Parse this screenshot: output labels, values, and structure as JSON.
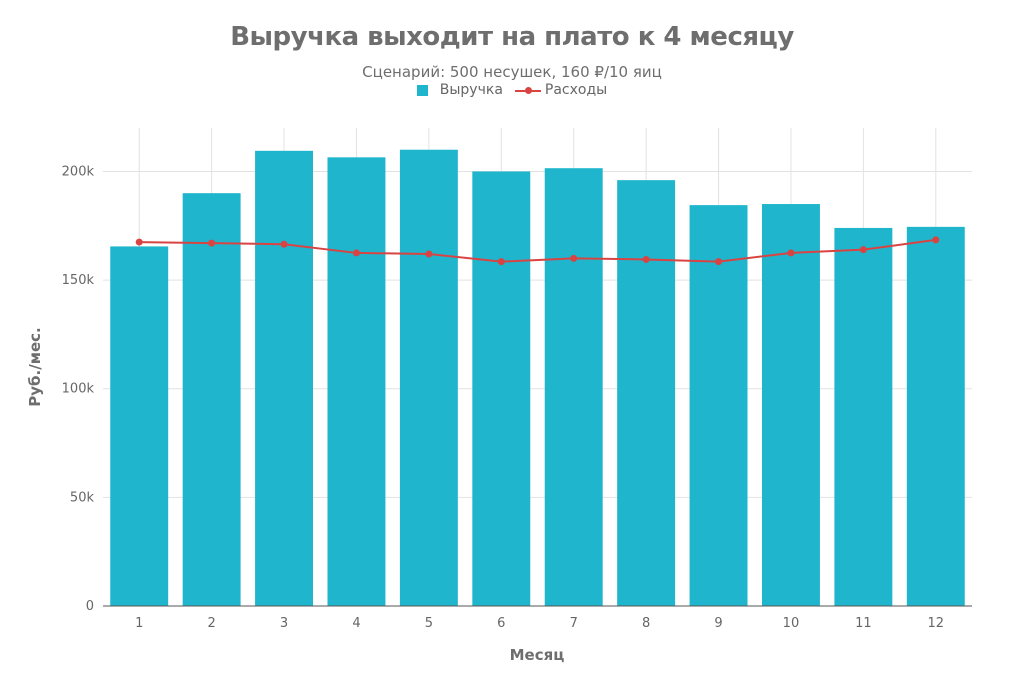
{
  "chart_data": {
    "type": "bar",
    "title": "Выручка выходит на плато к 4 месяцу",
    "subtitle": "Сценарий: 500 несушек, 160 ₽/10 яиц",
    "xlabel": "Месяц",
    "ylabel": "Руб./мес.",
    "categories": [
      "1",
      "2",
      "3",
      "4",
      "5",
      "6",
      "7",
      "8",
      "9",
      "10",
      "11",
      "12"
    ],
    "ylim": [
      0,
      220000
    ],
    "yticks": [
      0,
      50000,
      100000,
      150000,
      200000
    ],
    "ytick_labels": [
      "0",
      "50k",
      "100k",
      "150k",
      "200k"
    ],
    "grid": true,
    "legend": "top-center",
    "series": [
      {
        "name": "Выручка",
        "type": "bar",
        "color": "#1fb5cc",
        "values": [
          165500,
          190000,
          209500,
          206500,
          210000,
          200000,
          201500,
          196000,
          184500,
          185000,
          174000,
          174500
        ]
      },
      {
        "name": "Расходы",
        "type": "line",
        "color": "#d94443",
        "values": [
          167500,
          167000,
          166500,
          162500,
          162000,
          158500,
          160000,
          159500,
          158500,
          162500,
          164000,
          168500
        ]
      }
    ]
  }
}
